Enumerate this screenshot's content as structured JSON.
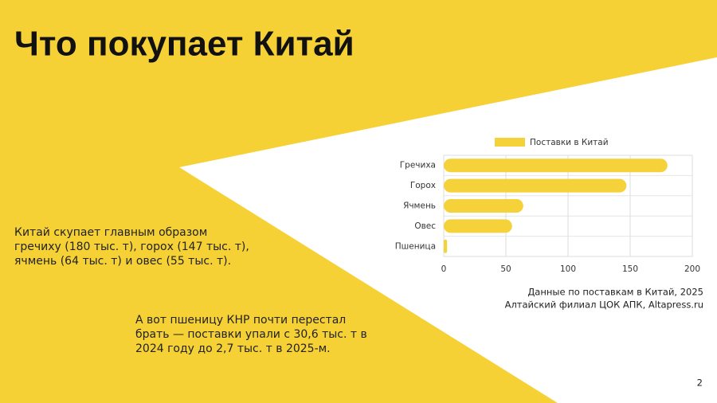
{
  "title": "Что покупает Китай",
  "paragraph_1": [
    "Китай скупает главным образом",
    "гречиху (180 тыс. т), горох (147 тыс. т),",
    "ячмень (64 тыс. т) и овес (55 тыс. т)."
  ],
  "paragraph_2": [
    "А вот пшеницу КНР почти перестал",
    "брать — поставки упали с 30,6 тыс. т в",
    "2024 году до 2,7 тыс. т в 2025-м."
  ],
  "source": [
    "Данные по поставкам в Китай, 2025",
    "Алтайский филиал ЦОК АПК, Altapress.ru"
  ],
  "page_number": "2",
  "chart_data": {
    "type": "hbar",
    "categories": [
      "Гречиха",
      "Горох",
      "Ячмень",
      "Овес",
      "Пшеница"
    ],
    "series": [
      {
        "name": "Поставки в Китай",
        "color": "#f5d13a",
        "values": [
          180,
          147,
          64,
          55,
          2.7
        ]
      }
    ],
    "xlim": [
      0,
      200
    ],
    "xticks": [
      0,
      50,
      100,
      150,
      200
    ],
    "grid": true,
    "legend": "top"
  }
}
